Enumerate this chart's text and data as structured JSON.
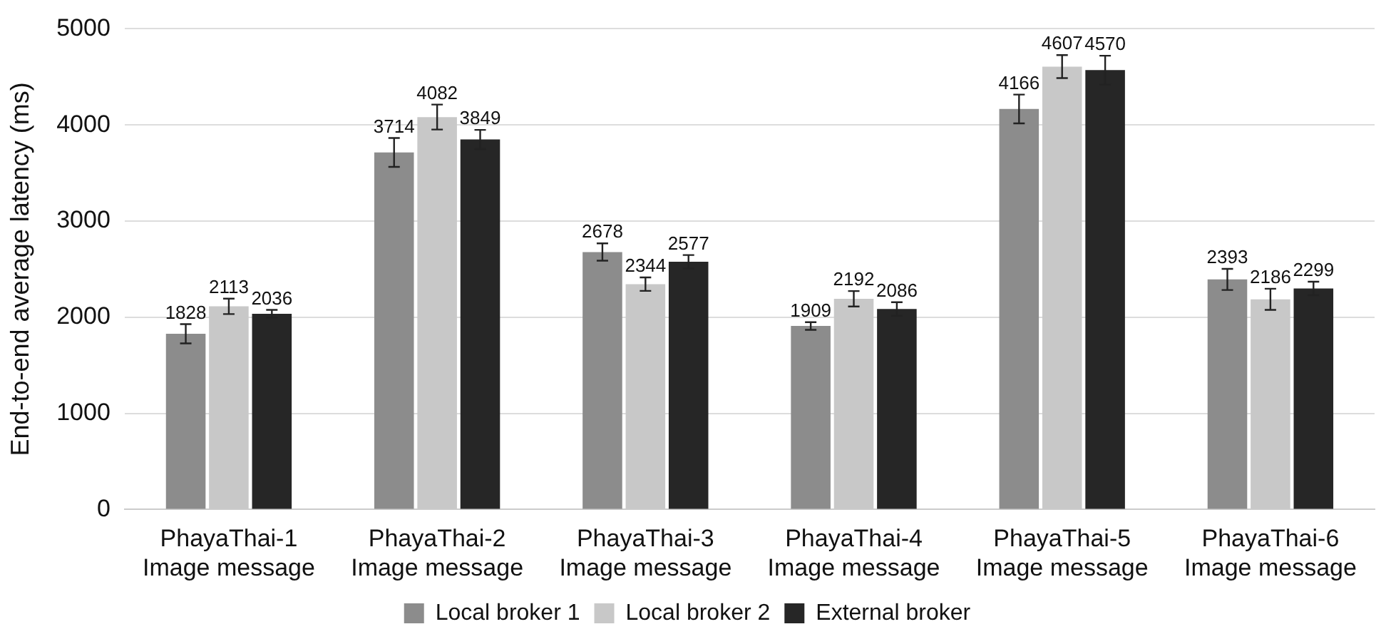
{
  "chart_data": {
    "type": "bar",
    "ylabel": "End-to-end average latency (ms)",
    "categories": [
      "PhayaThai-1\nImage message",
      "PhayaThai-2\nImage message",
      "PhayaThai-3\nImage message",
      "PhayaThai-4\nImage message",
      "PhayaThai-5\nImage message",
      "PhayaThai-6\nImage message"
    ],
    "series": [
      {
        "name": "Local broker 1",
        "color": "#8c8c8c",
        "values": [
          1828,
          3714,
          2678,
          1909,
          4166,
          2393
        ],
        "errors": [
          100,
          150,
          90,
          40,
          150,
          110
        ]
      },
      {
        "name": "Local broker 2",
        "color": "#c8c8c8",
        "values": [
          2113,
          4082,
          2344,
          2192,
          4607,
          2186
        ],
        "errors": [
          80,
          130,
          70,
          80,
          120,
          110
        ]
      },
      {
        "name": "External broker",
        "color": "#262626",
        "values": [
          2036,
          3849,
          2577,
          2086,
          4570,
          2299
        ],
        "errors": [
          40,
          100,
          70,
          70,
          150,
          70
        ]
      }
    ],
    "ylim": [
      0,
      5000
    ],
    "yticks": [
      0,
      1000,
      2000,
      3000,
      4000,
      5000
    ],
    "grid": "y",
    "legend": "bottom",
    "data_labels": true
  }
}
